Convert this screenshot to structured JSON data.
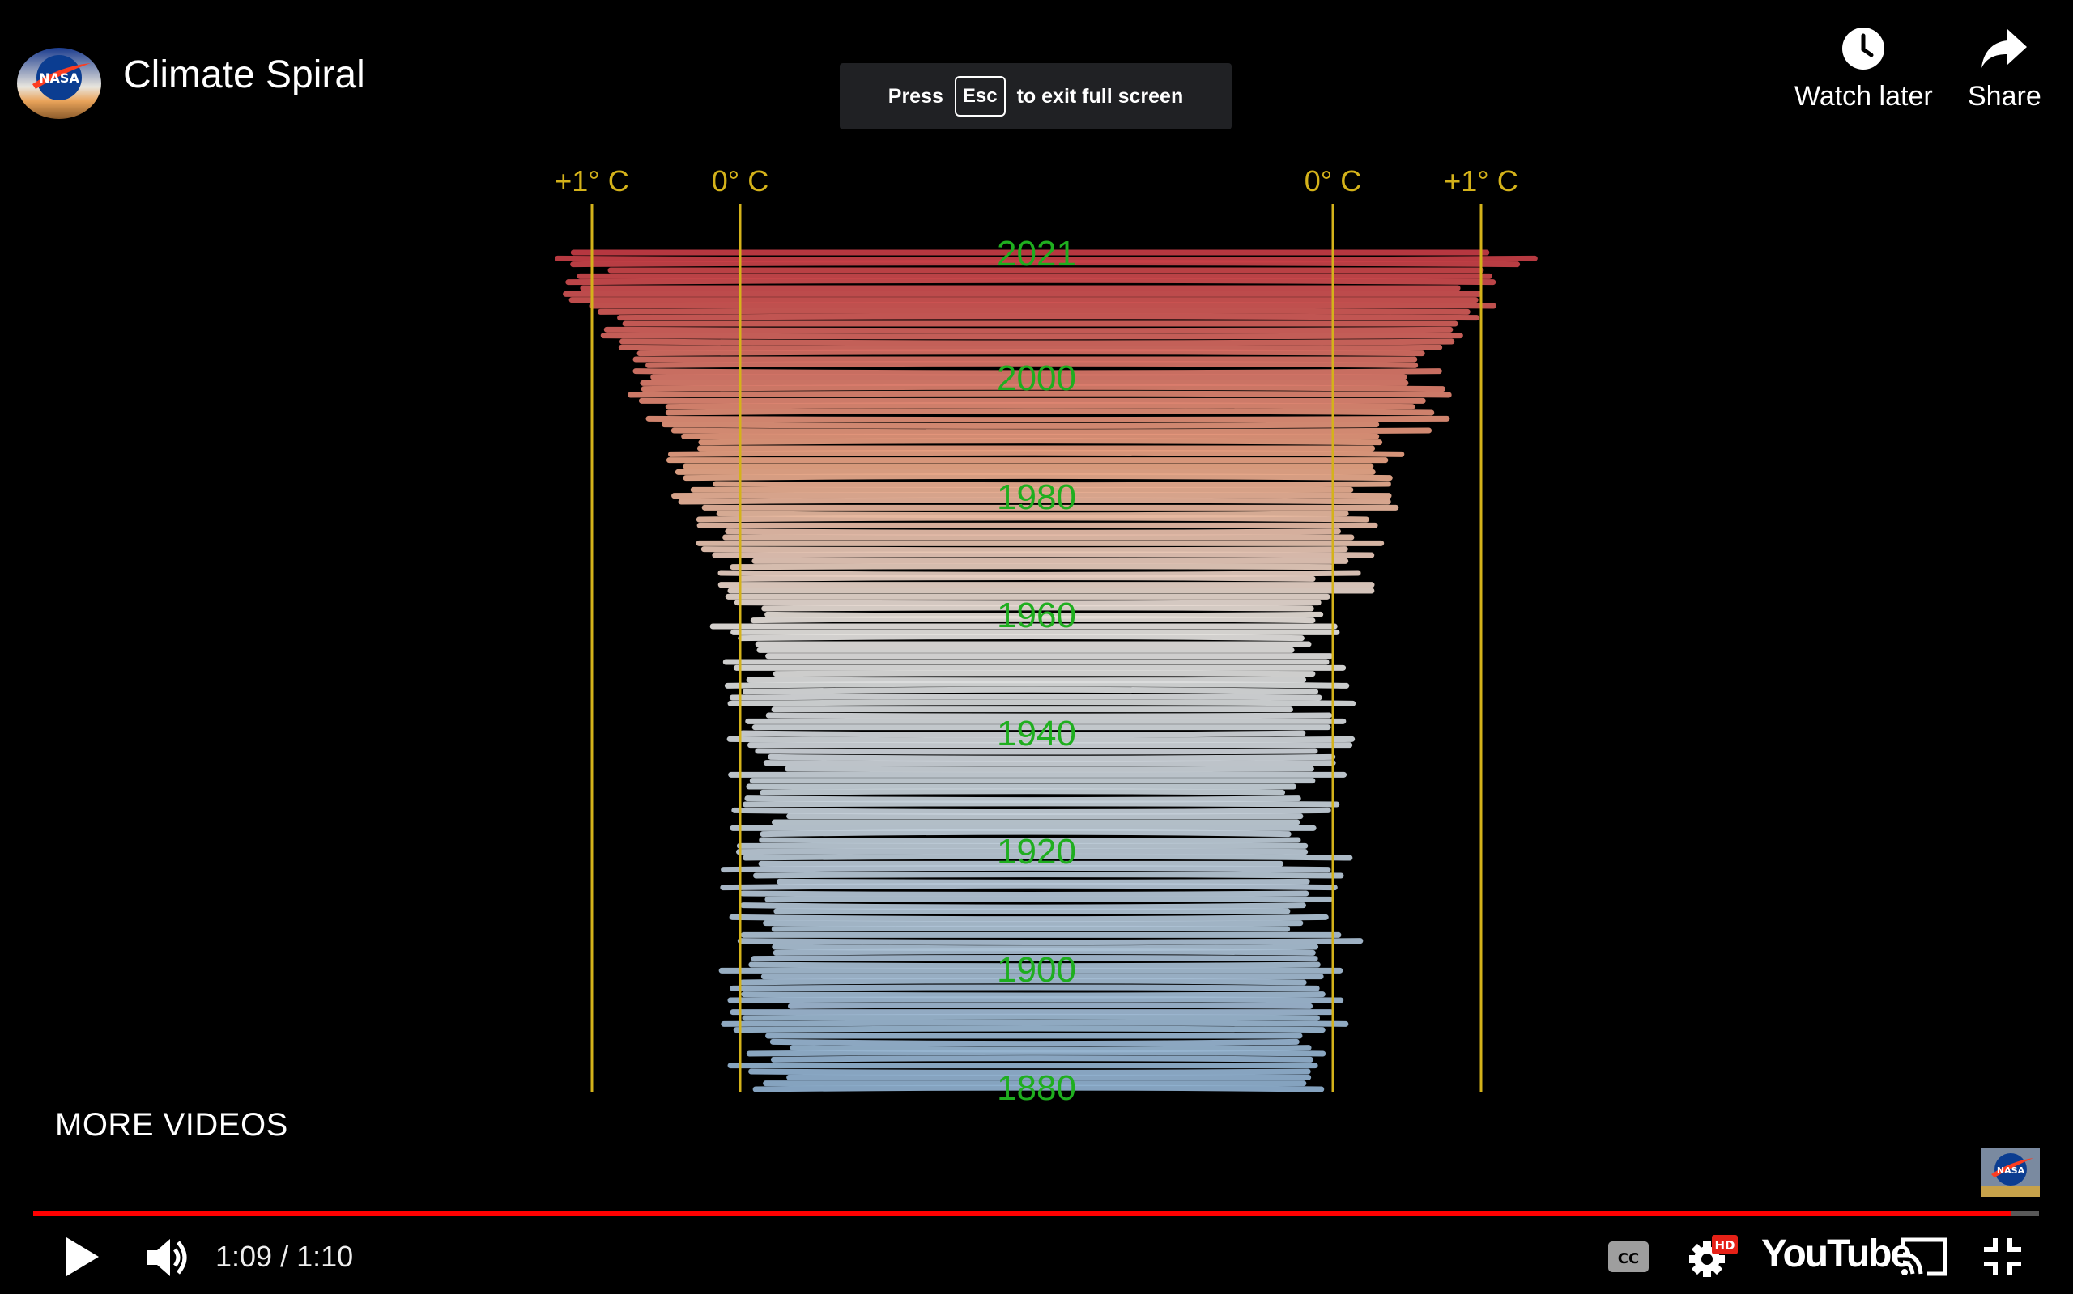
{
  "video": {
    "title": "Climate Spiral"
  },
  "toast": {
    "press": "Press",
    "key": "Esc",
    "suffix": "to exit full screen"
  },
  "top_actions": {
    "watch_later": "Watch later",
    "share": "Share"
  },
  "chart": {
    "axis_labels": {
      "left_plus": "+1° C",
      "left_zero": "0° C",
      "right_zero": "0° C",
      "right_plus": "+1° C"
    },
    "year_labels": [
      "2021",
      "2000",
      "1980",
      "1960",
      "1940",
      "1920",
      "1900",
      "1880"
    ],
    "colors": {
      "axis": "#d4b21a",
      "year_label": "#1fae1f",
      "warm": "#c63c45",
      "cool": "#8fb0cf",
      "neutral": "#e6e3df"
    }
  },
  "overlay": {
    "more_videos": "MORE VIDEOS"
  },
  "player": {
    "time_current": "1:09",
    "time_total": "1:10",
    "time_text": "1:09 / 1:10",
    "progress_fraction": 0.986,
    "play_icon": "play-icon",
    "volume_icon": "volume-icon",
    "captions_icon": "cc-icon",
    "settings_icon": "settings-gear-icon",
    "settings_badge": "HD",
    "brand": "YouTube",
    "cast_icon": "cast-icon",
    "exit_fullscreen_icon": "exit-fullscreen-icon",
    "accent": "#ff0000"
  }
}
